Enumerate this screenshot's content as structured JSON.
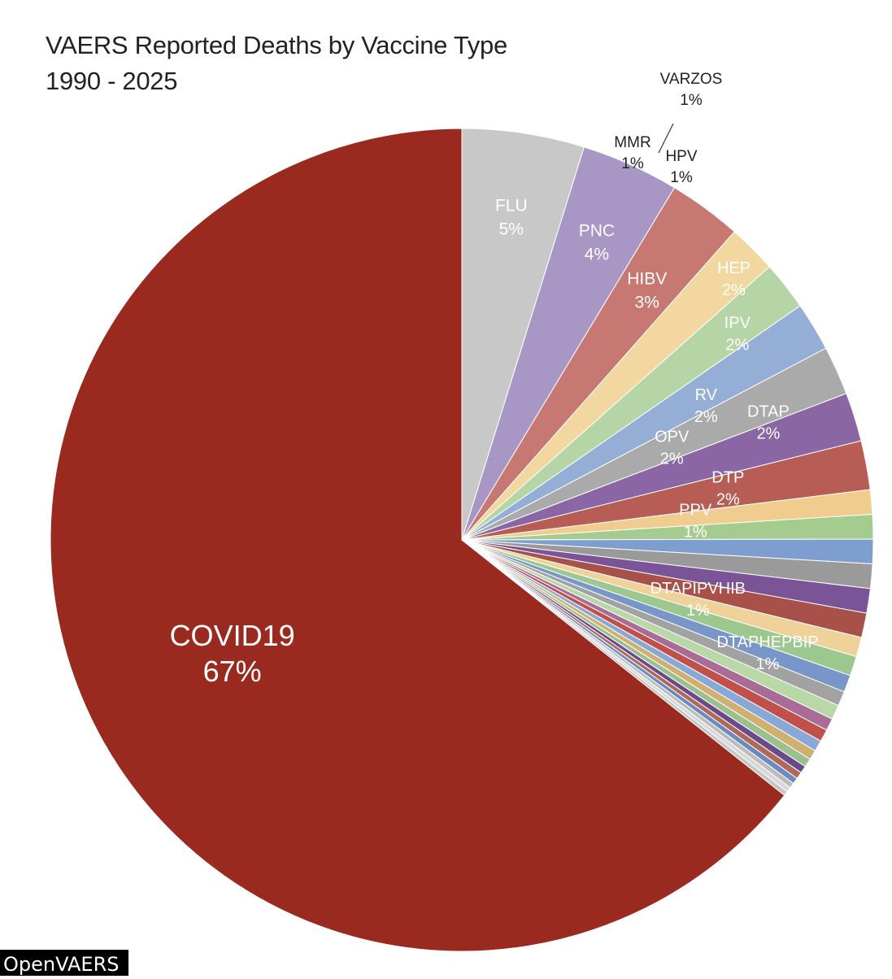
{
  "chart_data": {
    "type": "pie",
    "title": "VAERS Reported Deaths by Vaccine Type",
    "subtitle": "1990 - 2025",
    "slices": [
      {
        "name": "COVID19",
        "value": 67,
        "label": "67%",
        "color": "#9a2a1f"
      },
      {
        "name": "FLU",
        "value": 5,
        "label": "5%",
        "color": "#c8c8c8"
      },
      {
        "name": "PNC",
        "value": 4,
        "label": "4%",
        "color": "#a896c4"
      },
      {
        "name": "HIBV",
        "value": 3,
        "label": "3%",
        "color": "#c87872"
      },
      {
        "name": "HEP",
        "value": 2,
        "label": "2%",
        "color": "#f2d8a0"
      },
      {
        "name": "IPV",
        "value": 2,
        "label": "2%",
        "color": "#b6d5a6"
      },
      {
        "name": "RV",
        "value": 2,
        "label": "2%",
        "color": "#94aed6"
      },
      {
        "name": "OPV",
        "value": 2,
        "label": "2%",
        "color": "#aaaaaa"
      },
      {
        "name": "DTAP",
        "value": 2,
        "label": "2%",
        "color": "#8a66a4"
      },
      {
        "name": "DTP",
        "value": 2,
        "label": "2%",
        "color": "#b85c56"
      },
      {
        "name": "PPV",
        "value": 1,
        "label": "1%",
        "color": "#f0cc8e"
      },
      {
        "name": "",
        "value": 1,
        "label": "",
        "color": "#a4cc8e"
      },
      {
        "name": "",
        "value": 1,
        "label": "",
        "color": "#7f9ed0"
      },
      {
        "name": "",
        "value": 1,
        "label": "",
        "color": "#9a9a9a"
      },
      {
        "name": "DTAPIPVHIB",
        "value": 1,
        "label": "1%",
        "color": "#7a5496"
      },
      {
        "name": "",
        "value": 1,
        "label": "",
        "color": "#a8504a"
      },
      {
        "name": "",
        "value": 0.8,
        "label": "",
        "color": "#eed29a"
      },
      {
        "name": "DTAPHEPBIP",
        "value": 0.8,
        "label": "1%",
        "color": "#9cc890"
      },
      {
        "name": "",
        "value": 0.7,
        "label": "",
        "color": "#7896c8"
      },
      {
        "name": "",
        "value": 0.6,
        "label": "",
        "color": "#a2a2a2"
      },
      {
        "name": "HPV",
        "value": 0.6,
        "label": "1%",
        "color": "#b8d8a8"
      },
      {
        "name": "MMR",
        "value": 0.5,
        "label": "1%",
        "color": "#a86c96"
      },
      {
        "name": "VARZOS",
        "value": 0.5,
        "label": "1%",
        "color": "#c0504a"
      },
      {
        "name": "",
        "value": 0.45,
        "label": "",
        "color": "#88a8d8"
      },
      {
        "name": "",
        "value": 0.4,
        "label": "",
        "color": "#d0b070"
      },
      {
        "name": "",
        "value": 0.35,
        "label": "",
        "color": "#9ac090"
      },
      {
        "name": "",
        "value": 0.3,
        "label": "",
        "color": "#6a4a8a"
      },
      {
        "name": "",
        "value": 0.28,
        "label": "",
        "color": "#b06858"
      },
      {
        "name": "",
        "value": 0.25,
        "label": "",
        "color": "#6a8ac0"
      },
      {
        "name": "",
        "value": 0.22,
        "label": "",
        "color": "#bcbcbc"
      },
      {
        "name": "",
        "value": 0.2,
        "label": "",
        "color": "#d8d8d8"
      },
      {
        "name": "",
        "value": 0.18,
        "label": "",
        "color": "#c6c6c6"
      }
    ],
    "legend": "none"
  },
  "watermark": "OpenVAERS"
}
